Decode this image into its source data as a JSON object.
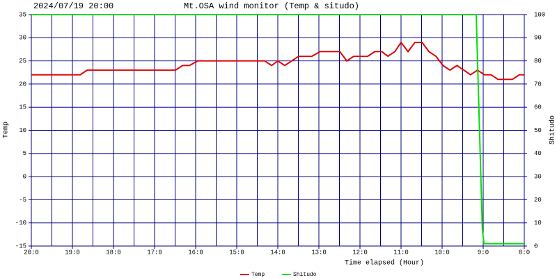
{
  "chart_data": {
    "type": "line",
    "timestamp": "2024/07/19 20:00",
    "title": "Mt.OSA wind monitor (Temp & situdo)",
    "xlabel": "Time elapsed (Hour)",
    "ylabel": "Temp",
    "y2label": "Shitudo",
    "xlim": [
      20,
      8
    ],
    "xticks": [
      {
        "value": 20,
        "label": "20:0"
      },
      {
        "value": 19,
        "label": "19:0"
      },
      {
        "value": 18,
        "label": "18:0"
      },
      {
        "value": 17,
        "label": "17:0"
      },
      {
        "value": 16,
        "label": "16:0"
      },
      {
        "value": 15,
        "label": "15:0"
      },
      {
        "value": 14,
        "label": "14:0"
      },
      {
        "value": 13,
        "label": "13:0"
      },
      {
        "value": 12,
        "label": "12:0"
      },
      {
        "value": 11,
        "label": "11:0"
      },
      {
        "value": 10,
        "label": "10:0"
      },
      {
        "value": 9,
        "label": "9:0"
      },
      {
        "value": 8,
        "label": "8:0"
      }
    ],
    "xgrid": [
      20,
      19.5,
      19,
      18.5,
      18,
      17.5,
      17,
      16.5,
      16,
      15.5,
      15,
      14.5,
      14,
      13.5,
      13,
      12.5,
      12,
      11.5,
      11,
      10.5,
      10,
      9.5,
      9,
      8.5,
      8
    ],
    "ylim": [
      -15,
      35
    ],
    "yticks": [
      35,
      30,
      25,
      20,
      15,
      10,
      5,
      0,
      -5,
      -10,
      -15
    ],
    "y2lim": [
      0,
      100
    ],
    "y2ticks": [
      100,
      90,
      80,
      70,
      60,
      50,
      40,
      30,
      20,
      10,
      0
    ],
    "grid": true,
    "series": [
      {
        "name": "Temp",
        "color": "#e00000",
        "x": [
          20,
          18.81,
          18.64,
          16.49,
          16.32,
          16.15,
          15.95,
          14.32,
          14.15,
          14.0,
          13.83,
          13.66,
          13.49,
          13.17,
          12.97,
          12.49,
          12.32,
          12.15,
          11.81,
          11.64,
          11.47,
          11.32,
          11.15,
          11.0,
          10.83,
          10.66,
          10.49,
          10.32,
          10.15,
          9.98,
          9.81,
          9.64,
          9.47,
          9.31,
          9.14,
          8.97,
          8.81,
          8.64,
          8.29,
          8.12,
          8.0
        ],
        "values": [
          22,
          22,
          23,
          23,
          24,
          24,
          25,
          25,
          24,
          25,
          24,
          25,
          26,
          26,
          27,
          27,
          25,
          26,
          26,
          27,
          27,
          26,
          27,
          29,
          27,
          29,
          29,
          27,
          26,
          24,
          23,
          24,
          23,
          22,
          23,
          22,
          22,
          21,
          21,
          22,
          22
        ]
      },
      {
        "name": "Shitudo",
        "color": "#00e000",
        "axis": "y2",
        "x": [
          20,
          9.17,
          9.02,
          8.98,
          8.0
        ],
        "values": [
          100,
          100,
          7,
          1,
          1
        ]
      }
    ]
  }
}
